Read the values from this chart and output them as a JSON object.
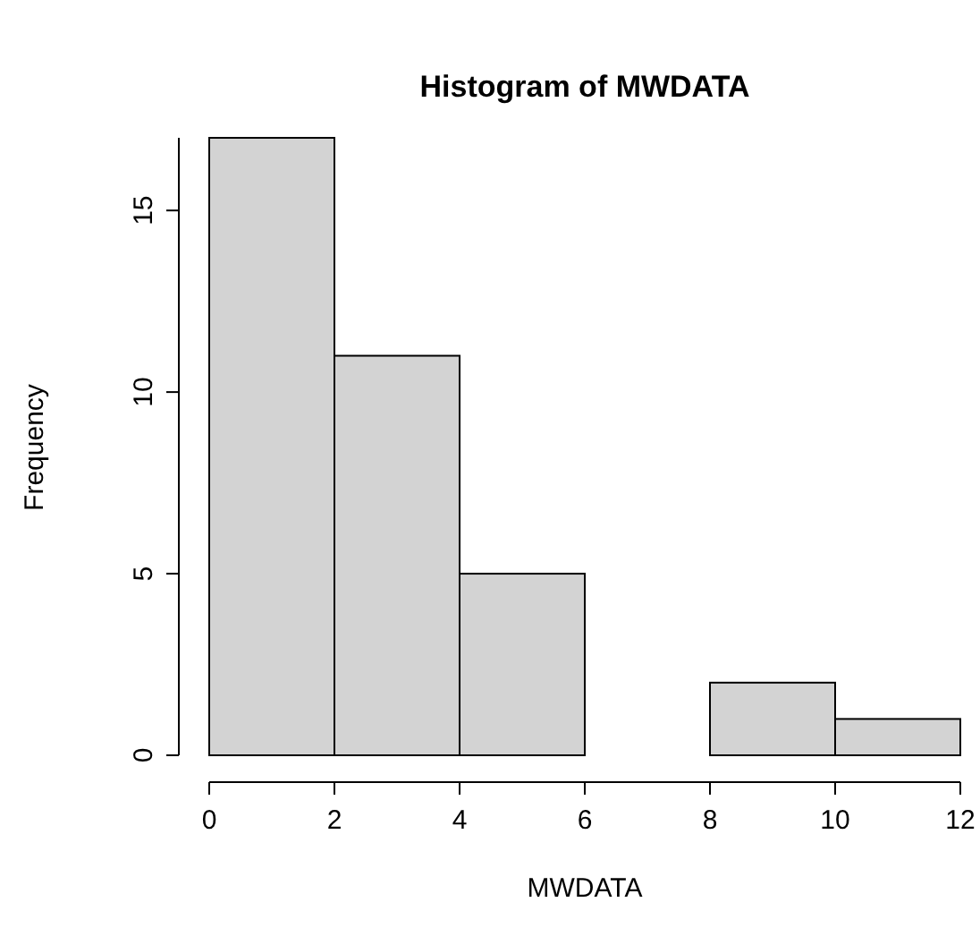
{
  "chart_data": {
    "type": "histogram",
    "title": "Histogram of MWDATA",
    "xlabel": "MWDATA",
    "ylabel": "Frequency",
    "bins": [
      0,
      2,
      4,
      6,
      8,
      10,
      12
    ],
    "values": [
      17,
      11,
      5,
      0,
      2,
      1
    ],
    "color": "#d3d3d3",
    "xlim": [
      0,
      12
    ],
    "xticks": [
      0,
      2,
      4,
      6,
      8,
      10,
      12
    ],
    "ylim": [
      0,
      17
    ],
    "yticks": [
      0,
      5,
      10,
      15
    ]
  }
}
